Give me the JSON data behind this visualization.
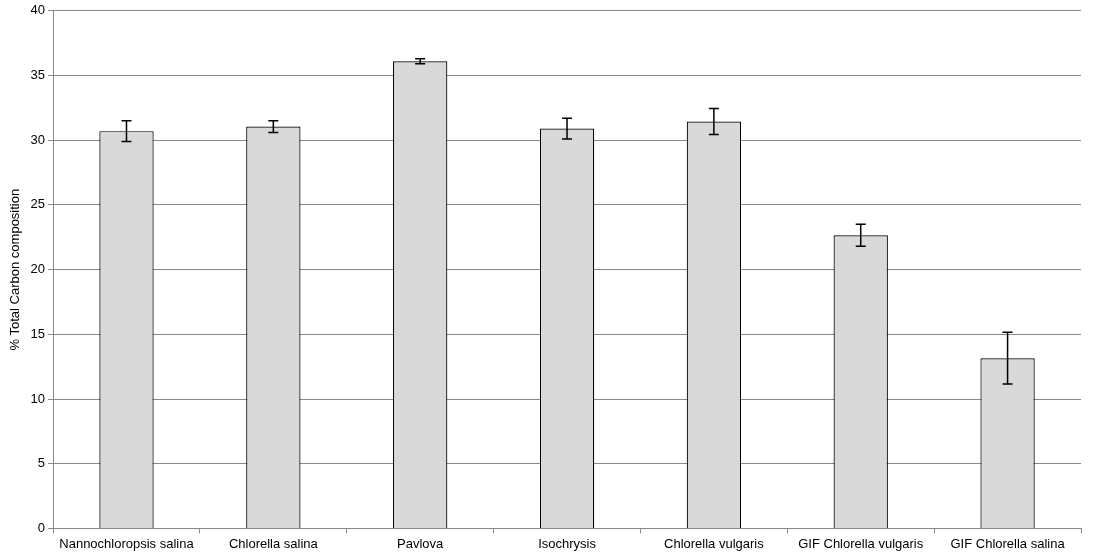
{
  "chart_data": {
    "type": "bar",
    "ylabel": "% Total Carbon composition",
    "categories": [
      "Nannochloropsis salina",
      "Chlorella salina",
      "Pavlova",
      "Isochrysis",
      "Chlorella vulgaris",
      "GIF Chlorella vulgaris",
      "GIF Chlorella salina"
    ],
    "values": [
      30.7,
      31.05,
      36.1,
      30.9,
      31.45,
      22.65,
      13.15
    ],
    "errors": [
      0.8,
      0.45,
      0.2,
      0.8,
      1.0,
      0.85,
      2.0
    ],
    "color": "#d9d9d9",
    "ylim": [
      0,
      40
    ],
    "yticks": [
      0,
      5,
      10,
      15,
      20,
      25,
      30,
      35,
      40
    ],
    "grid": "y",
    "legend": false
  }
}
